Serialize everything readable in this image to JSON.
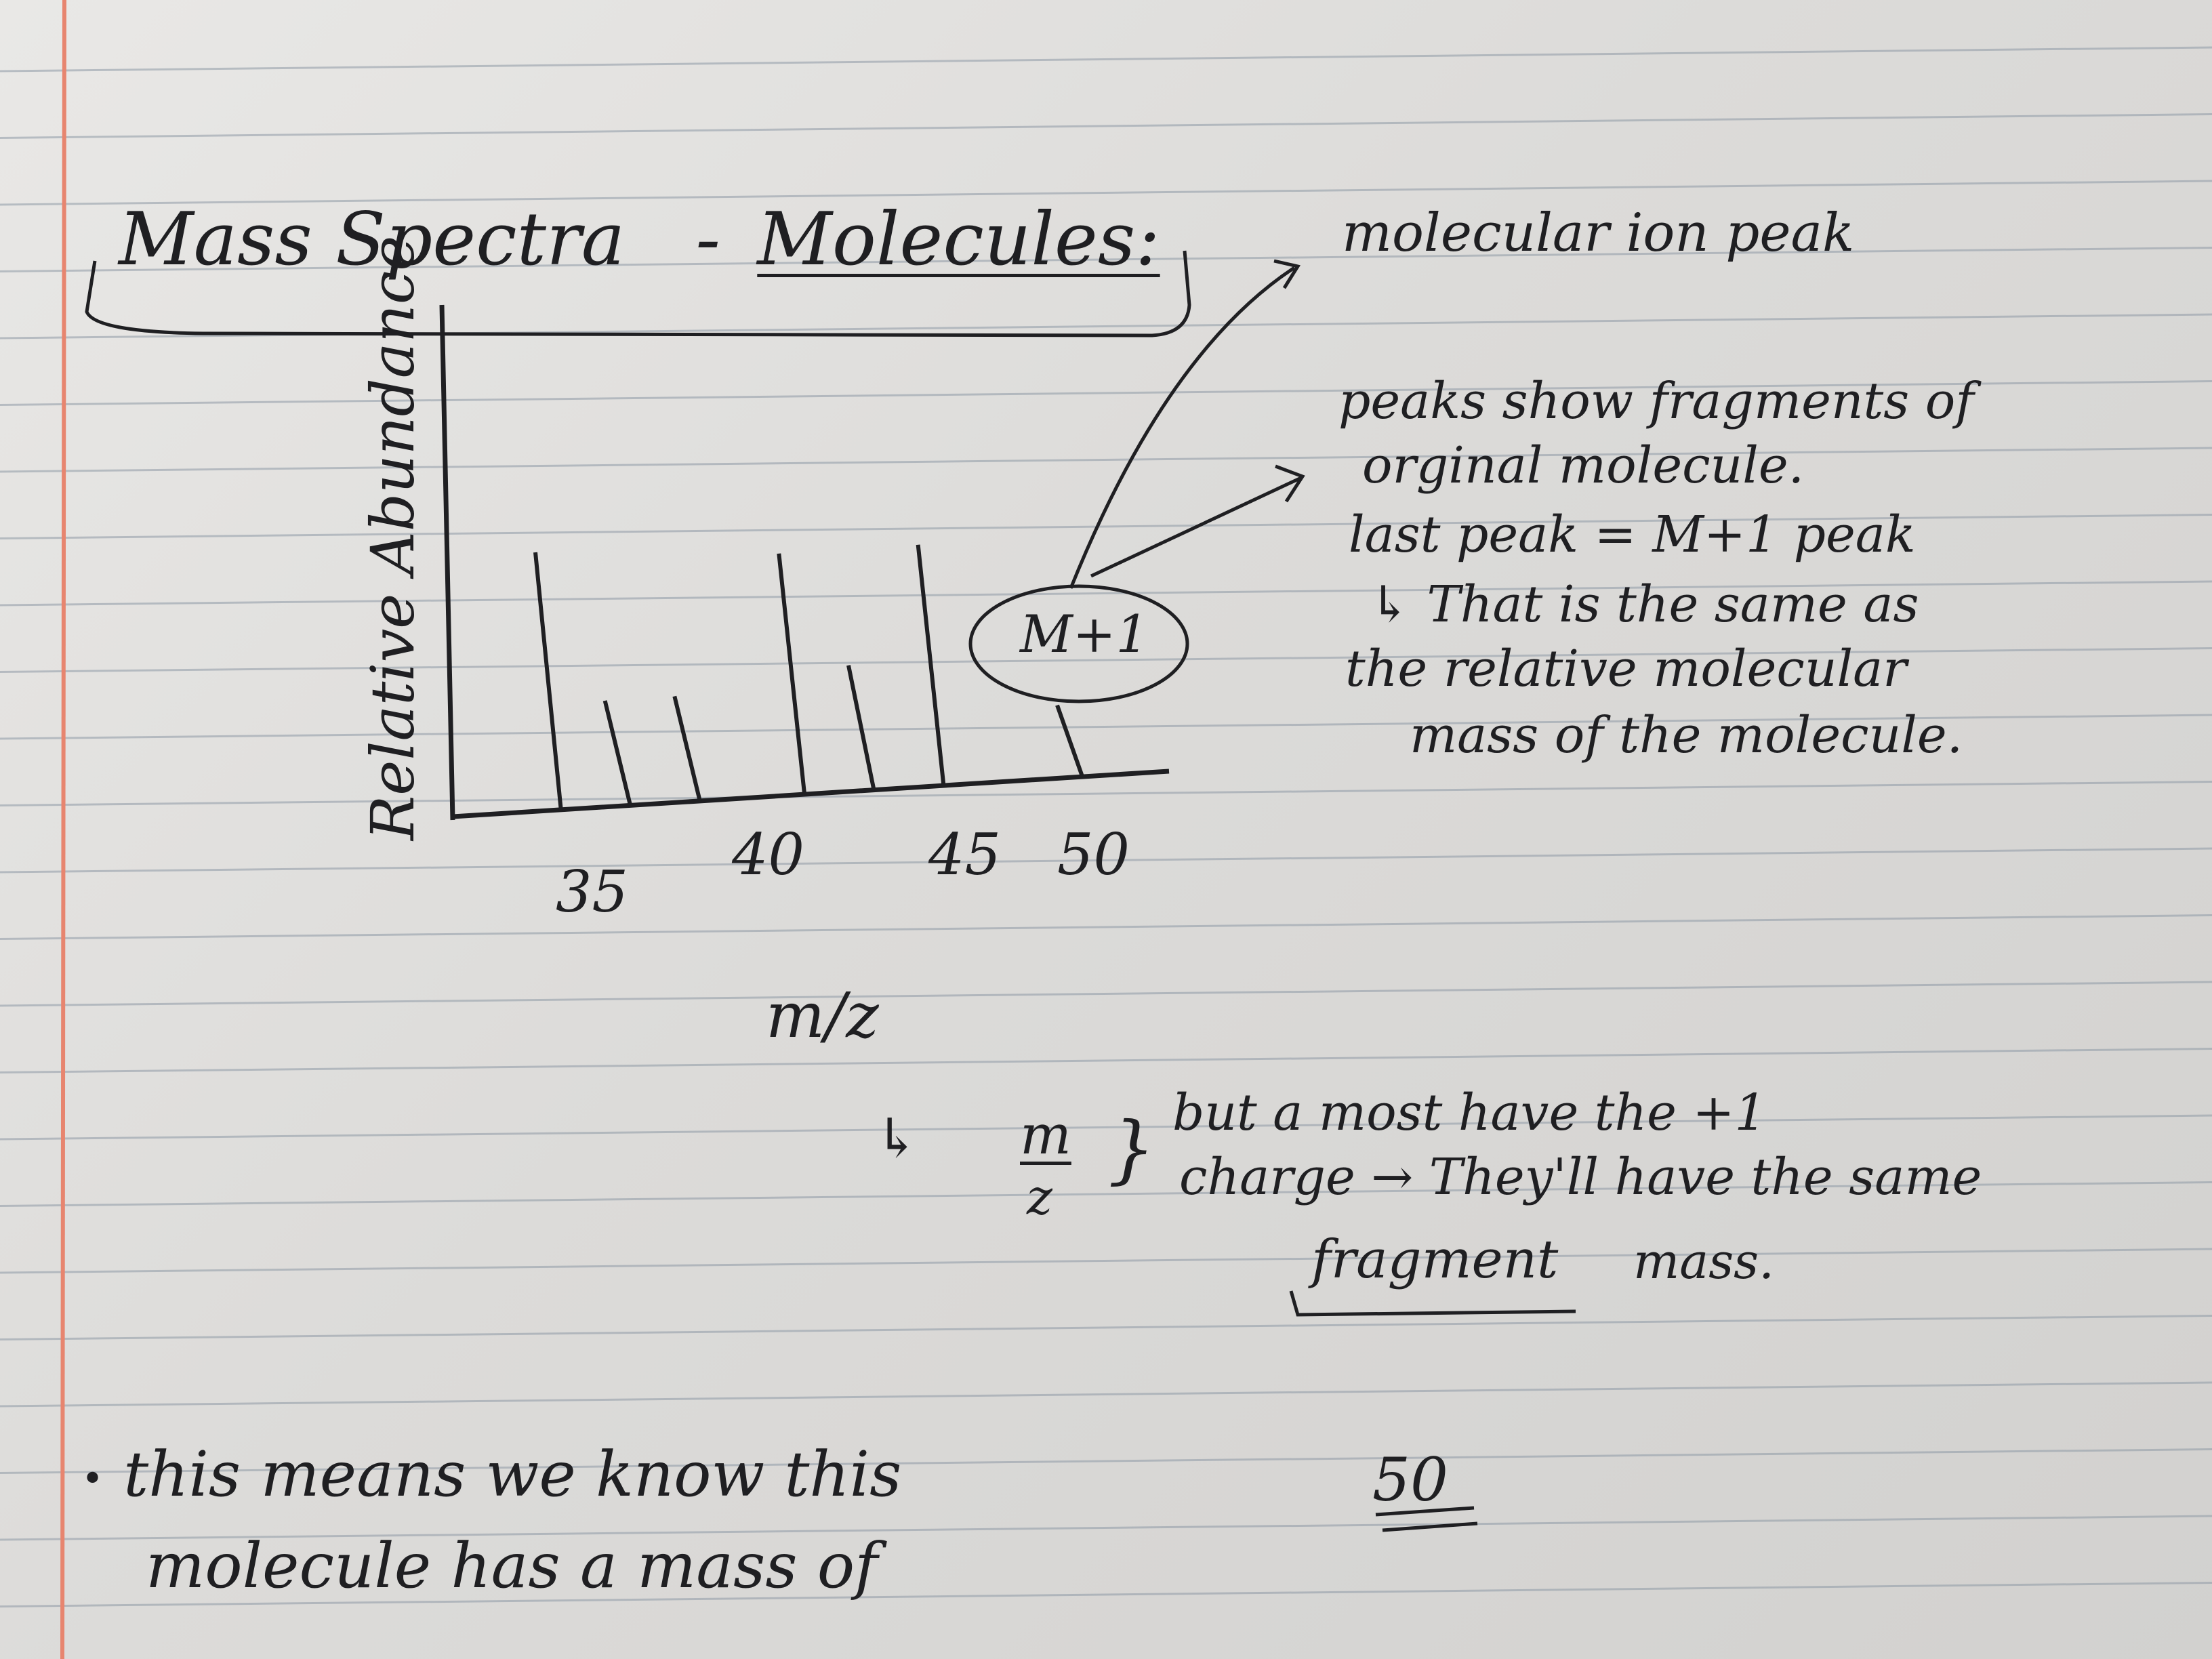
{
  "page": {
    "title_part1": "Mass Spectra",
    "title_dash": "-",
    "title_part2": "Molecules:",
    "callout_molecular_ion": "molecular ion peak",
    "note_lines": [
      "peaks show fragments of",
      "orginal molecule.",
      "last peak = M+1 peak",
      "↳ That is the same as",
      "the relative molecular",
      "mass of the molecule."
    ],
    "peak_label": "M+1",
    "mz_note": {
      "arrow": "↳",
      "frac_top": "m",
      "frac_bottom": "z",
      "brace": "}",
      "line1": "but a most have the +1",
      "line2": "charge → They'll have the same",
      "line3a": "fragment",
      "line3b": "mass."
    },
    "conclusion": {
      "bullet": "•",
      "line1": "this means we know this",
      "line2": "molecule has a mass of",
      "value": "50"
    }
  },
  "chart_data": {
    "type": "bar",
    "title": "",
    "xlabel": "m/z",
    "ylabel": "Relative Abundance",
    "x_ticks": [
      "35",
      "40",
      "45",
      "50"
    ],
    "x_tick_values": [
      35,
      40,
      45,
      50
    ],
    "x": [
      35,
      37,
      39,
      42,
      44,
      46,
      50
    ],
    "relative_heights": [
      0.78,
      0.32,
      0.32,
      0.73,
      0.38,
      0.73,
      0.22
    ],
    "annotation": "M+1",
    "annotated_x": 50
  }
}
